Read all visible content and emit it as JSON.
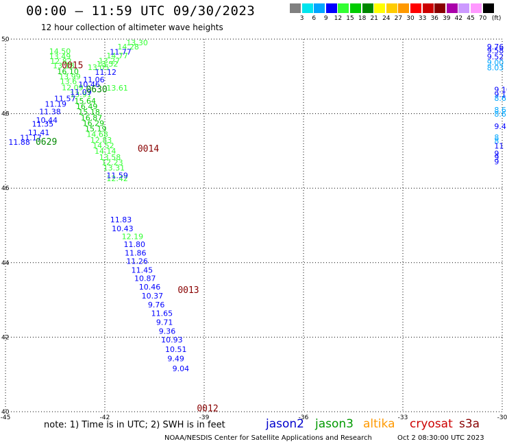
{
  "header": {
    "title": "00:00 – 11:59 UTC 09/30/2023",
    "subtitle": "12 hour collection of altimeter wave heights"
  },
  "color_scale": {
    "labels": [
      "3",
      "6",
      "9",
      "12",
      "15",
      "18",
      "21",
      "24",
      "27",
      "30",
      "33",
      "36",
      "39",
      "42",
      "45",
      "70"
    ],
    "unit": "(ft)",
    "colors": [
      "#808080",
      "#00e5ee",
      "#00a6ff",
      "#0000ff",
      "#33ff33",
      "#00cc00",
      "#008800",
      "#ffff00",
      "#ffcc00",
      "#ff9900",
      "#ff0000",
      "#cc0000",
      "#880000",
      "#aa00aa",
      "#cc99ff",
      "#ff99ff",
      "#000000"
    ]
  },
  "chart_data": {
    "type": "scatter",
    "xlim": [
      -45,
      -30
    ],
    "ylim": [
      40,
      50
    ],
    "x_ticks": [
      "-45",
      "-42",
      "-39",
      "-36",
      "-33",
      "-30"
    ],
    "y_ticks": [
      "50",
      "48",
      "46",
      "44",
      "42",
      "40"
    ],
    "grid": true,
    "points": [
      {
        "lon": -43.68,
        "lat": 49.6,
        "v": "14.50",
        "c": "#33ff33"
      },
      {
        "lon": -43.68,
        "lat": 49.47,
        "v": "13.49",
        "c": "#33ff33"
      },
      {
        "lon": -43.65,
        "lat": 49.34,
        "v": "12.82",
        "c": "#33ff33"
      },
      {
        "lon": -43.57,
        "lat": 49.22,
        "v": "13.18",
        "c": "#33ff33"
      },
      {
        "lon": -43.44,
        "lat": 49.06,
        "v": "16.10",
        "c": "#00cc00"
      },
      {
        "lon": -43.38,
        "lat": 48.92,
        "v": "13.99",
        "c": "#33ff33"
      },
      {
        "lon": -43.35,
        "lat": 48.79,
        "v": "13.6",
        "c": "#33ff33"
      },
      {
        "lon": -43.3,
        "lat": 48.63,
        "v": "12.09",
        "c": "#33ff33"
      },
      {
        "lon": -43.05,
        "lat": 48.44,
        "v": "13.91",
        "c": "#33ff33"
      },
      {
        "lon": -42.92,
        "lat": 48.27,
        "v": "15.64",
        "c": "#00cc00"
      },
      {
        "lon": -42.87,
        "lat": 48.12,
        "v": "16.49",
        "c": "#00cc00"
      },
      {
        "lon": -42.8,
        "lat": 47.97,
        "v": "15.18",
        "c": "#00cc00"
      },
      {
        "lon": -42.73,
        "lat": 47.82,
        "v": "16.87",
        "c": "#00cc00"
      },
      {
        "lon": -42.67,
        "lat": 47.67,
        "v": "16.29",
        "c": "#00cc00"
      },
      {
        "lon": -42.6,
        "lat": 47.52,
        "v": "15.19",
        "c": "#00cc00"
      },
      {
        "lon": -42.55,
        "lat": 47.38,
        "v": "14.68",
        "c": "#33ff33"
      },
      {
        "lon": -42.44,
        "lat": 47.22,
        "v": "12.83",
        "c": "#33ff33"
      },
      {
        "lon": -42.37,
        "lat": 47.07,
        "v": "14.52",
        "c": "#33ff33"
      },
      {
        "lon": -42.31,
        "lat": 46.92,
        "v": "14.14",
        "c": "#33ff33"
      },
      {
        "lon": -42.17,
        "lat": 46.76,
        "v": "13.58",
        "c": "#33ff33"
      },
      {
        "lon": -42.1,
        "lat": 46.62,
        "v": "12.23",
        "c": "#33ff33"
      },
      {
        "lon": -42.05,
        "lat": 46.47,
        "v": "13.31",
        "c": "#33ff33"
      },
      {
        "lon": -41.95,
        "lat": 46.19,
        "v": "12.42",
        "c": "#33ff33"
      },
      {
        "lon": -41.35,
        "lat": 49.83,
        "v": "13.30",
        "c": "#33ff33"
      },
      {
        "lon": -41.62,
        "lat": 49.72,
        "v": "14.28",
        "c": "#33ff33"
      },
      {
        "lon": -41.95,
        "lat": 49.48,
        "v": "14.77",
        "c": "#33ff33"
      },
      {
        "lon": -42.19,
        "lat": 49.35,
        "v": "13.27",
        "c": "#33ff33"
      },
      {
        "lon": -42.25,
        "lat": 49.26,
        "v": "13.52",
        "c": "#33ff33"
      },
      {
        "lon": -42.52,
        "lat": 49.17,
        "v": "13.05",
        "c": "#33ff33"
      },
      {
        "lon": -41.95,
        "lat": 48.62,
        "v": "13.61",
        "c": "#33ff33"
      },
      {
        "lon": -41.49,
        "lat": 44.63,
        "v": "12.19",
        "c": "#33ff33"
      },
      {
        "lon": -41.85,
        "lat": 49.59,
        "v": "11.77",
        "c": "#0000ff"
      },
      {
        "lon": -42.3,
        "lat": 49.04,
        "v": "11.12",
        "c": "#0000ff"
      },
      {
        "lon": -42.66,
        "lat": 48.84,
        "v": "11.06",
        "c": "#0000ff"
      },
      {
        "lon": -42.8,
        "lat": 48.71,
        "v": "10.46",
        "c": "#0000ff"
      },
      {
        "lon": -43.05,
        "lat": 48.51,
        "v": "11.09",
        "c": "#0000ff"
      },
      {
        "lon": -43.53,
        "lat": 48.33,
        "v": "11.57",
        "c": "#0000ff"
      },
      {
        "lon": -43.81,
        "lat": 48.19,
        "v": "11.19",
        "c": "#0000ff"
      },
      {
        "lon": -43.98,
        "lat": 47.98,
        "v": "11.38",
        "c": "#0000ff"
      },
      {
        "lon": -44.08,
        "lat": 47.75,
        "v": "10.44",
        "c": "#0000ff"
      },
      {
        "lon": -44.2,
        "lat": 47.65,
        "v": "11.35",
        "c": "#0000ff"
      },
      {
        "lon": -44.32,
        "lat": 47.42,
        "v": "11.41",
        "c": "#0000ff"
      },
      {
        "lon": -44.56,
        "lat": 47.28,
        "v": "11.17",
        "c": "#0000ff"
      },
      {
        "lon": -44.91,
        "lat": 47.16,
        "v": "11.88",
        "c": "#0000ff"
      },
      {
        "lon": -41.95,
        "lat": 46.27,
        "v": "11.59",
        "c": "#0000ff"
      },
      {
        "lon": -41.84,
        "lat": 45.08,
        "v": "11.83",
        "c": "#0000ff"
      },
      {
        "lon": -41.79,
        "lat": 44.84,
        "v": "10.43",
        "c": "#0000ff"
      },
      {
        "lon": -41.43,
        "lat": 44.42,
        "v": "11.80",
        "c": "#0000ff"
      },
      {
        "lon": -41.4,
        "lat": 44.19,
        "v": "11.86",
        "c": "#0000ff"
      },
      {
        "lon": -41.35,
        "lat": 43.97,
        "v": "11.26",
        "c": "#0000ff"
      },
      {
        "lon": -41.2,
        "lat": 43.73,
        "v": "11.45",
        "c": "#0000ff"
      },
      {
        "lon": -41.11,
        "lat": 43.51,
        "v": "10.87",
        "c": "#0000ff"
      },
      {
        "lon": -40.97,
        "lat": 43.28,
        "v": "10.46",
        "c": "#0000ff"
      },
      {
        "lon": -40.89,
        "lat": 43.04,
        "v": "10.37",
        "c": "#0000ff"
      },
      {
        "lon": -40.7,
        "lat": 42.8,
        "v": "9.76",
        "c": "#0000ff"
      },
      {
        "lon": -40.6,
        "lat": 42.57,
        "v": "11.65",
        "c": "#0000ff"
      },
      {
        "lon": -40.45,
        "lat": 42.33,
        "v": "9.71",
        "c": "#0000ff"
      },
      {
        "lon": -40.37,
        "lat": 42.09,
        "v": "9.36",
        "c": "#0000ff"
      },
      {
        "lon": -40.3,
        "lat": 41.86,
        "v": "10.93",
        "c": "#0000ff"
      },
      {
        "lon": -40.18,
        "lat": 41.6,
        "v": "10.51",
        "c": "#0000ff"
      },
      {
        "lon": -40.11,
        "lat": 41.35,
        "v": "9.49",
        "c": "#0000ff"
      },
      {
        "lon": -39.96,
        "lat": 41.09,
        "v": "9.04",
        "c": "#0000ff"
      },
      {
        "lon": -30.46,
        "lat": 49.72,
        "v": "9.76",
        "c": "#0000ff"
      },
      {
        "lon": -30.46,
        "lat": 49.62,
        "v": "9.58",
        "c": "#0000ff"
      },
      {
        "lon": -30.46,
        "lat": 49.46,
        "v": "9.52",
        "c": "#0000ff"
      },
      {
        "lon": -30.46,
        "lat": 49.3,
        "v": "9.00",
        "c": "#00a6ff"
      },
      {
        "lon": -30.46,
        "lat": 49.16,
        "v": "8.03",
        "c": "#00a6ff"
      },
      {
        "lon": -30.24,
        "lat": 48.57,
        "v": "9.10",
        "c": "#0000ff"
      },
      {
        "lon": -30.24,
        "lat": 48.44,
        "v": "9.1",
        "c": "#0000ff"
      },
      {
        "lon": -30.24,
        "lat": 48.34,
        "v": "8.6",
        "c": "#00a6ff"
      },
      {
        "lon": -30.24,
        "lat": 48.03,
        "v": "8.6",
        "c": "#00a6ff"
      },
      {
        "lon": -30.24,
        "lat": 47.92,
        "v": "8.6",
        "c": "#00a6ff"
      },
      {
        "lon": -30.24,
        "lat": 47.59,
        "v": "9.4",
        "c": "#0000ff"
      },
      {
        "lon": -30.24,
        "lat": 47.29,
        "v": "8",
        "c": "#00a6ff"
      },
      {
        "lon": -30.24,
        "lat": 47.19,
        "v": "8",
        "c": "#00a6ff"
      },
      {
        "lon": -30.24,
        "lat": 47.06,
        "v": "11",
        "c": "#0000ff"
      },
      {
        "lon": -30.24,
        "lat": 46.86,
        "v": "9",
        "c": "#0000ff"
      },
      {
        "lon": -30.24,
        "lat": 46.76,
        "v": "9",
        "c": "#0000ff"
      },
      {
        "lon": -30.24,
        "lat": 46.64,
        "v": "9",
        "c": "#0000ff"
      }
    ],
    "time_labels": [
      {
        "lon": -43.3,
        "lat": 49.22,
        "t": "0015",
        "c": "#880000"
      },
      {
        "lon": -42.57,
        "lat": 48.57,
        "t": "0630",
        "c": "#008800"
      },
      {
        "lon": -44.09,
        "lat": 47.16,
        "t": "0629",
        "c": "#008800"
      },
      {
        "lon": -41.01,
        "lat": 46.98,
        "t": "0014",
        "c": "#880000"
      },
      {
        "lon": -39.8,
        "lat": 43.19,
        "t": "0013",
        "c": "#880000"
      },
      {
        "lon": -39.22,
        "lat": 40.01,
        "t": "0012",
        "c": "#880000"
      }
    ]
  },
  "footer": {
    "note": "note:  1)  Time is in UTC;  2)  SWH is in feet",
    "missions": [
      {
        "name": "jason2",
        "color": "#0000cc"
      },
      {
        "name": "jason3",
        "color": "#009900"
      },
      {
        "name": "altika",
        "color": "#ff9900"
      },
      {
        "name": "cryosat",
        "color": "#cc0000"
      },
      {
        "name": "s3a",
        "color": "#880000"
      }
    ],
    "credit": "NOAA/NESDIS Center for Satellite Applications and Research",
    "timestamp": "Oct  2 08:30:00 UTC 2023"
  }
}
